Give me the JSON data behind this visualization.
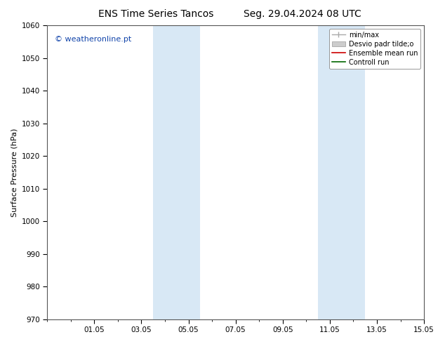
{
  "title_left": "ENS Time Series Tancos",
  "title_right": "Seg. 29.04.2024 08 UTC",
  "ylabel": "Surface Pressure (hPa)",
  "ylim": [
    970,
    1060
  ],
  "yticks": [
    970,
    980,
    990,
    1000,
    1010,
    1020,
    1030,
    1040,
    1050,
    1060
  ],
  "xlim": [
    0,
    16
  ],
  "xtick_labels": [
    "01.05",
    "03.05",
    "05.05",
    "07.05",
    "09.05",
    "11.05",
    "13.05",
    "15.05"
  ],
  "xtick_positions": [
    2,
    4,
    6,
    8,
    10,
    12,
    14,
    16
  ],
  "weekend_bands": [
    {
      "xmin": 4.5,
      "xmax": 5.5
    },
    {
      "xmin": 5.5,
      "xmax": 6.5
    },
    {
      "xmin": 11.5,
      "xmax": 12.5
    },
    {
      "xmin": 12.5,
      "xmax": 13.5
    }
  ],
  "band_color": "#d8e8f5",
  "watermark": "© weatheronline.pt",
  "watermark_color": "#1144aa",
  "legend_items": [
    {
      "label": "min/max",
      "color": "#aaaaaa",
      "lw": 1.0
    },
    {
      "label": "Desvio padr tilde;o",
      "color": "#cccccc",
      "patch": true
    },
    {
      "label": "Ensemble mean run",
      "color": "#cc0000",
      "lw": 1.2
    },
    {
      "label": "Controll run",
      "color": "#006600",
      "lw": 1.2
    }
  ],
  "background_color": "#ffffff",
  "plot_bg_color": "#ffffff",
  "title_fontsize": 10,
  "tick_fontsize": 7.5,
  "ylabel_fontsize": 8,
  "legend_fontsize": 7,
  "watermark_fontsize": 8
}
